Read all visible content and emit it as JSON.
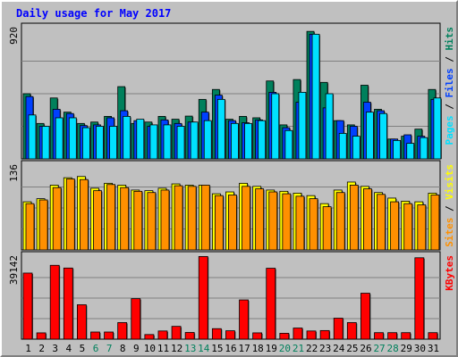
{
  "chart_data": {
    "type": "bar",
    "title": "Daily usage for May 2017",
    "categories": [
      "1",
      "2",
      "3",
      "4",
      "5",
      "6",
      "7",
      "8",
      "9",
      "10",
      "11",
      "12",
      "13",
      "14",
      "15",
      "16",
      "17",
      "18",
      "19",
      "20",
      "21",
      "22",
      "23",
      "24",
      "25",
      "26",
      "27",
      "28",
      "29",
      "30",
      "31"
    ],
    "weekend_days": [
      "6",
      "7",
      "13",
      "14",
      "20",
      "21",
      "27",
      "28"
    ],
    "panels": [
      {
        "id": "top",
        "max_label": "920",
        "ymax": 920,
        "legend": [
          "Pages",
          "/",
          "Files",
          "/",
          "Hits"
        ],
        "series": [
          {
            "name": "Hits",
            "color": "#00805c",
            "values": [
              460,
              250,
              430,
              330,
              250,
              260,
              300,
              510,
              250,
              260,
              300,
              280,
              302,
              420,
              490,
              280,
              300,
              290,
              550,
              240,
              560,
              900,
              540,
              270,
              240,
              520,
              350,
              140,
              160,
              210,
              490
            ]
          },
          {
            "name": "Files",
            "color": "#0040ff",
            "values": [
              440,
              230,
              350,
              320,
              235,
              240,
              290,
              340,
              270,
              230,
              275,
              250,
              260,
              330,
              450,
              270,
              255,
              275,
              470,
              220,
              400,
              880,
              360,
              270,
              230,
              400,
              340,
              140,
              170,
              160,
              420
            ]
          },
          {
            "name": "Pages",
            "color": "#00e0ff",
            "values": [
              310,
              230,
              290,
              290,
              220,
              230,
              230,
              300,
              280,
              240,
              240,
              230,
              260,
              270,
              420,
              250,
              250,
              270,
              460,
              200,
              470,
              880,
              460,
              180,
              160,
              330,
              320,
              130,
              110,
              150,
              430
            ]
          }
        ]
      },
      {
        "id": "mid",
        "max_label": "136",
        "ymax": 136,
        "legend": [
          "Sites",
          "/",
          "Visits"
        ],
        "series": [
          {
            "name": "Visits",
            "color": "#ffff00",
            "values": [
              78,
              83,
              105,
              117,
              119,
              100,
              108,
              105,
              97,
              96,
              100,
              107,
              105,
              105,
              91,
              94,
              108,
              103,
              97,
              95,
              92,
              88,
              75,
              97,
              110,
              103,
              93,
              84,
              79,
              78,
              92
            ]
          },
          {
            "name": "Sites",
            "color": "#ff9000",
            "values": [
              75,
              81,
              101,
              115,
              114,
              96,
              106,
              101,
              95,
              93,
              97,
              104,
              103,
              105,
              88,
              89,
              103,
              99,
              94,
              91,
              87,
              83,
              70,
              93,
              105,
              99,
              90,
              78,
              75,
              73,
              89
            ]
          }
        ]
      },
      {
        "id": "bot",
        "max_label": "39142",
        "ymax": 39142,
        "legend": [
          "KBytes"
        ],
        "series": [
          {
            "name": "KBytes",
            "color": "#ff0000",
            "values": [
              31500,
              3000,
              35200,
              33900,
              16400,
              3400,
              3400,
              7900,
              19300,
              2200,
              3900,
              6100,
              3200,
              39400,
              5000,
              4000,
              18700,
              3000,
              33800,
              2800,
              5300,
              3900,
              4100,
              10000,
              7900,
              21900,
              3100,
              3100,
              3100,
              38800,
              3100
            ]
          }
        ]
      }
    ]
  }
}
